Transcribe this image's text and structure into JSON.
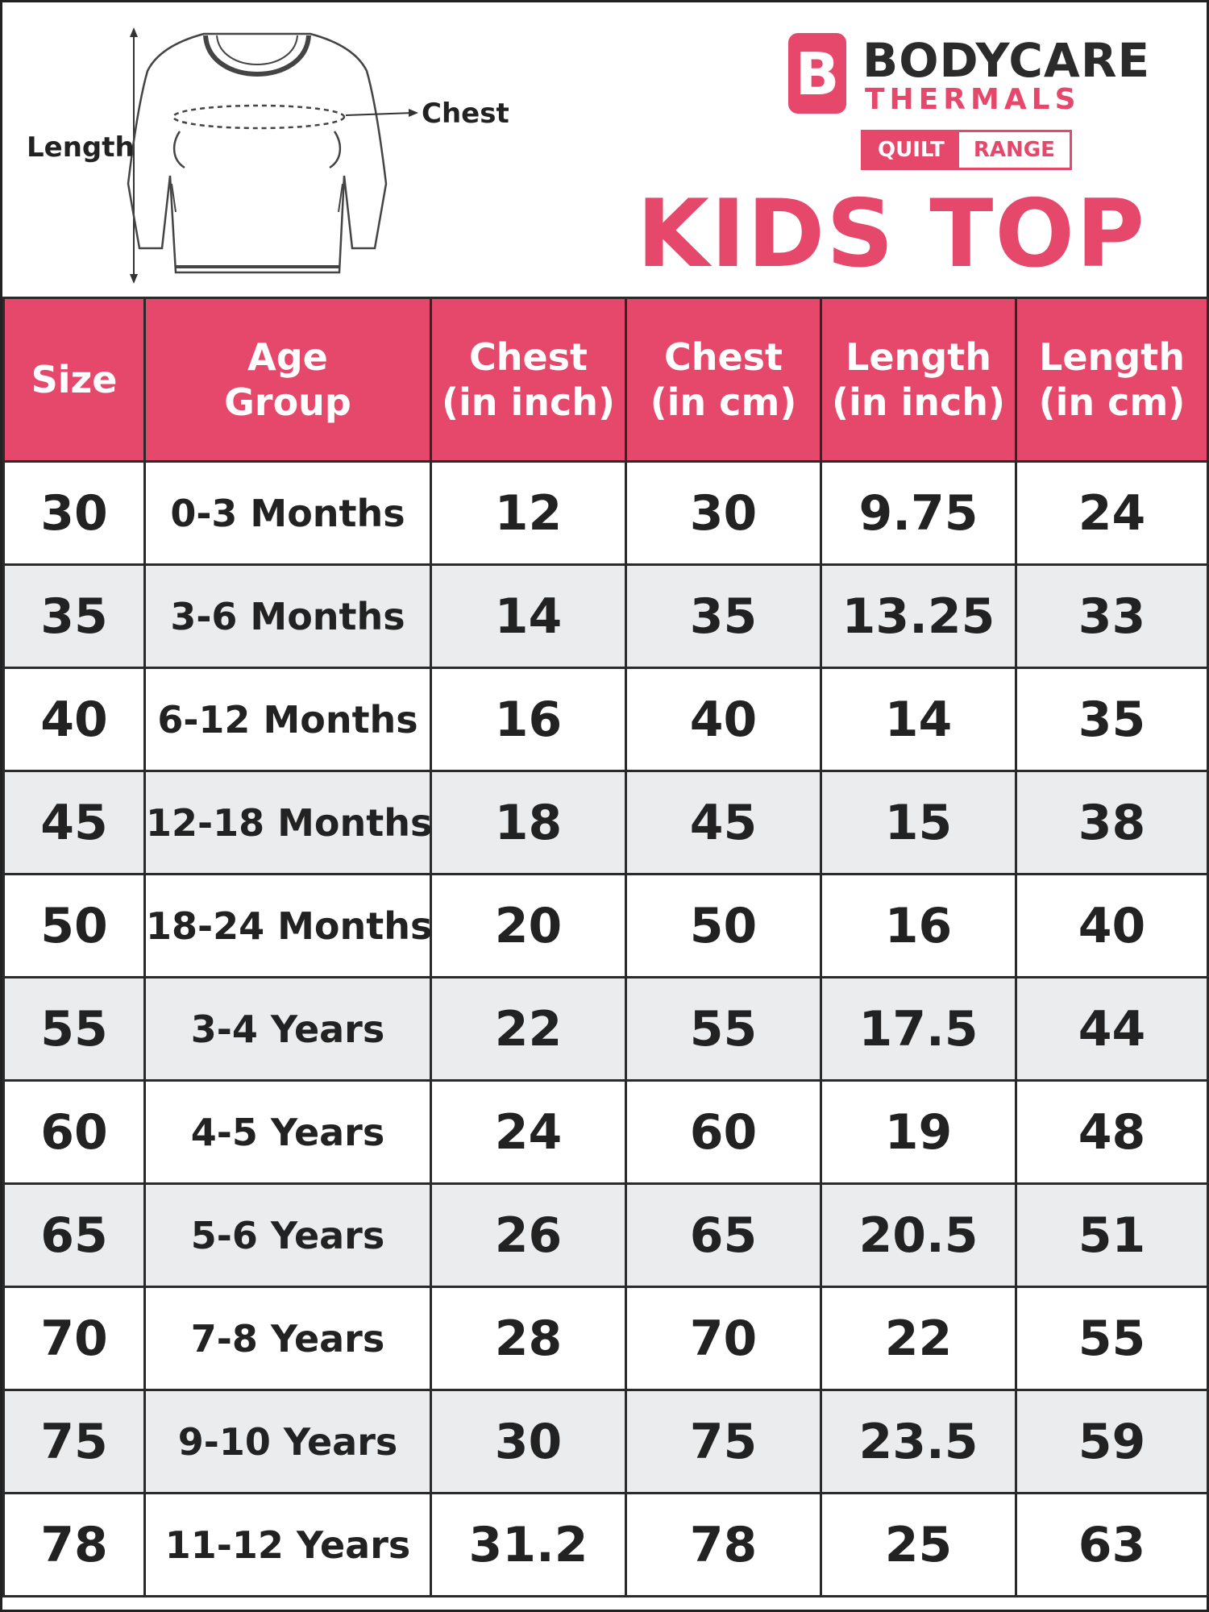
{
  "header": {
    "diagram_labels": {
      "length": "Length",
      "chest": "Chest"
    },
    "brand": {
      "line1": "BODYCARE",
      "line2": "THERMALS",
      "mark_letter": "B"
    },
    "badge": {
      "left": "QUILT",
      "right": "RANGE"
    },
    "title": "KIDS TOP"
  },
  "colors": {
    "accent": "#e5486a",
    "text": "#222222",
    "alt_row": "#ebeced"
  },
  "table": {
    "columns": [
      {
        "line1": "Size",
        "line2": ""
      },
      {
        "line1": "Age",
        "line2": "Group"
      },
      {
        "line1": "Chest",
        "line2": "(in inch)"
      },
      {
        "line1": "Chest",
        "line2": "(in cm)"
      },
      {
        "line1": "Length",
        "line2": "(in inch)"
      },
      {
        "line1": "Length",
        "line2": "(in cm)"
      }
    ],
    "rows": [
      [
        "30",
        "0-3 Months",
        "12",
        "30",
        "9.75",
        "24"
      ],
      [
        "35",
        "3-6 Months",
        "14",
        "35",
        "13.25",
        "33"
      ],
      [
        "40",
        "6-12 Months",
        "16",
        "40",
        "14",
        "35"
      ],
      [
        "45",
        "12-18 Months",
        "18",
        "45",
        "15",
        "38"
      ],
      [
        "50",
        "18-24 Months",
        "20",
        "50",
        "16",
        "40"
      ],
      [
        "55",
        "3-4 Years",
        "22",
        "55",
        "17.5",
        "44"
      ],
      [
        "60",
        "4-5 Years",
        "24",
        "60",
        "19",
        "48"
      ],
      [
        "65",
        "5-6 Years",
        "26",
        "65",
        "20.5",
        "51"
      ],
      [
        "70",
        "7-8 Years",
        "28",
        "70",
        "22",
        "55"
      ],
      [
        "75",
        "9-10 Years",
        "30",
        "75",
        "23.5",
        "59"
      ],
      [
        "78",
        "11-12 Years",
        "31.2",
        "78",
        "25",
        "63"
      ]
    ]
  }
}
